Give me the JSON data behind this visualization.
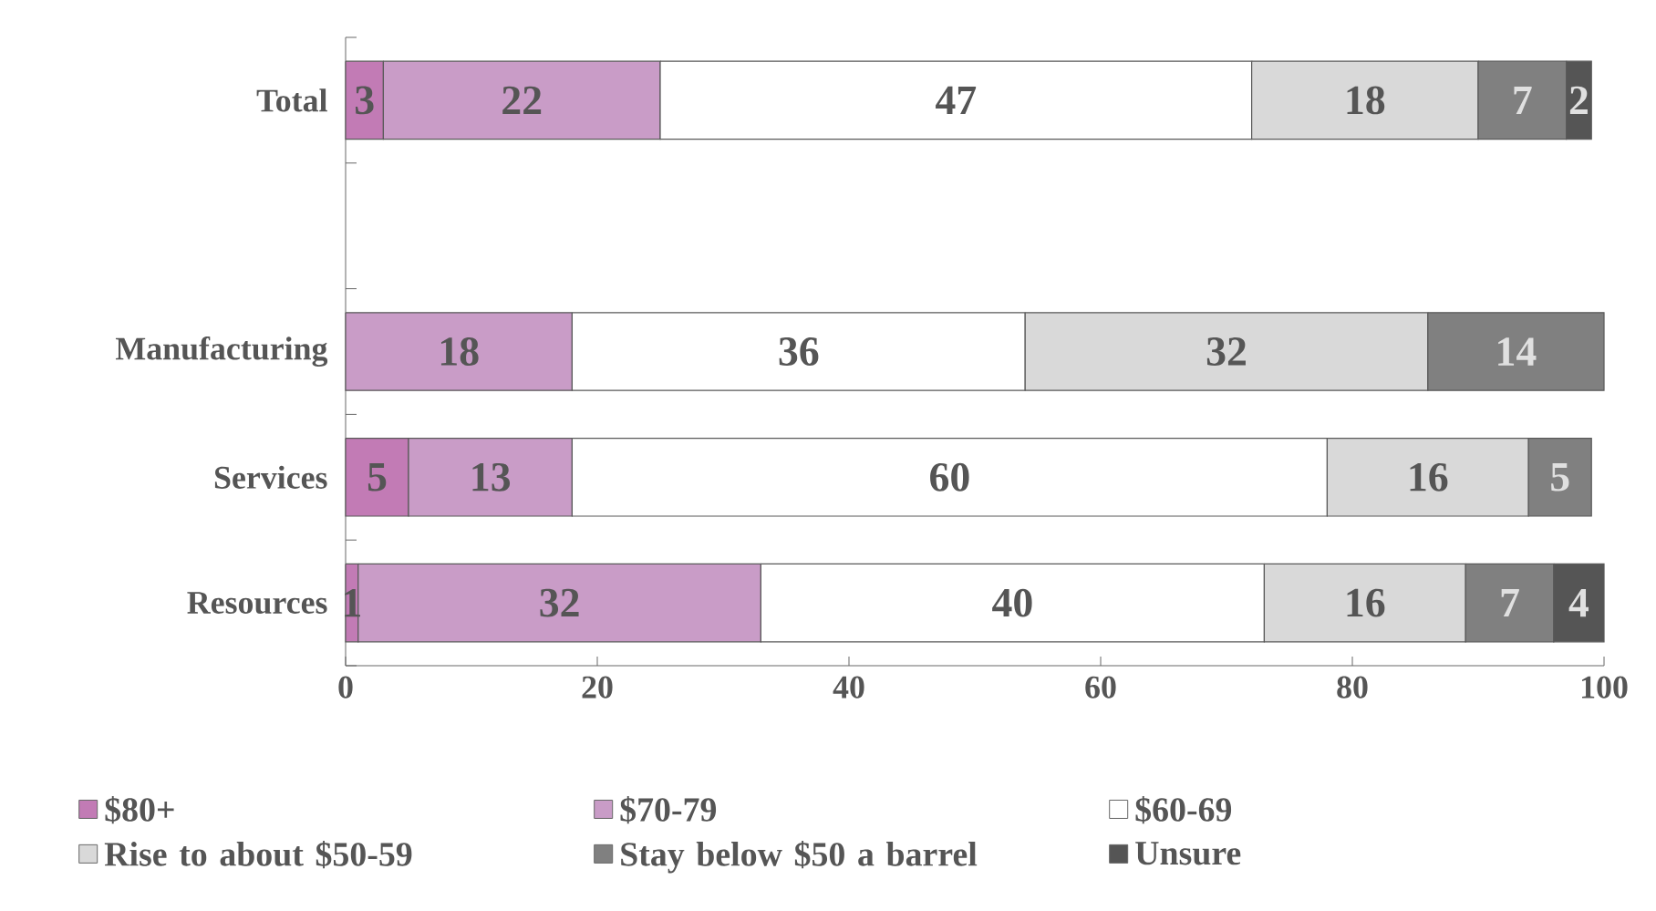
{
  "chart_data": {
    "type": "bar",
    "orientation": "horizontal",
    "stacked": true,
    "data_labels": true,
    "legend": "bottom",
    "grid": false,
    "categories": [
      "Total",
      null,
      "Manufacturing",
      "Services",
      "Resources"
    ],
    "series": [
      {
        "name": "$80+",
        "color": "#c27bb5",
        "values": [
          3,
          null,
          null,
          5,
          1
        ]
      },
      {
        "name": "$70-79",
        "color": "#c99cc7",
        "values": [
          22,
          null,
          18,
          13,
          32
        ]
      },
      {
        "name": "$60-69",
        "color": "#ffffff",
        "values": [
          47,
          null,
          36,
          60,
          40
        ]
      },
      {
        "name": "Rise to about $50-59",
        "color": "#d9d9d9",
        "values": [
          18,
          null,
          32,
          16,
          16
        ]
      },
      {
        "name": "Stay below $50 a barrel",
        "color": "#808080",
        "values": [
          7,
          null,
          14,
          5,
          7
        ]
      },
      {
        "name": "Unsure",
        "color": "#555555",
        "values": [
          2,
          null,
          null,
          null,
          4
        ]
      }
    ],
    "xlim": [
      0,
      100
    ],
    "xticks": [
      0,
      20,
      40,
      60,
      80,
      100
    ]
  }
}
